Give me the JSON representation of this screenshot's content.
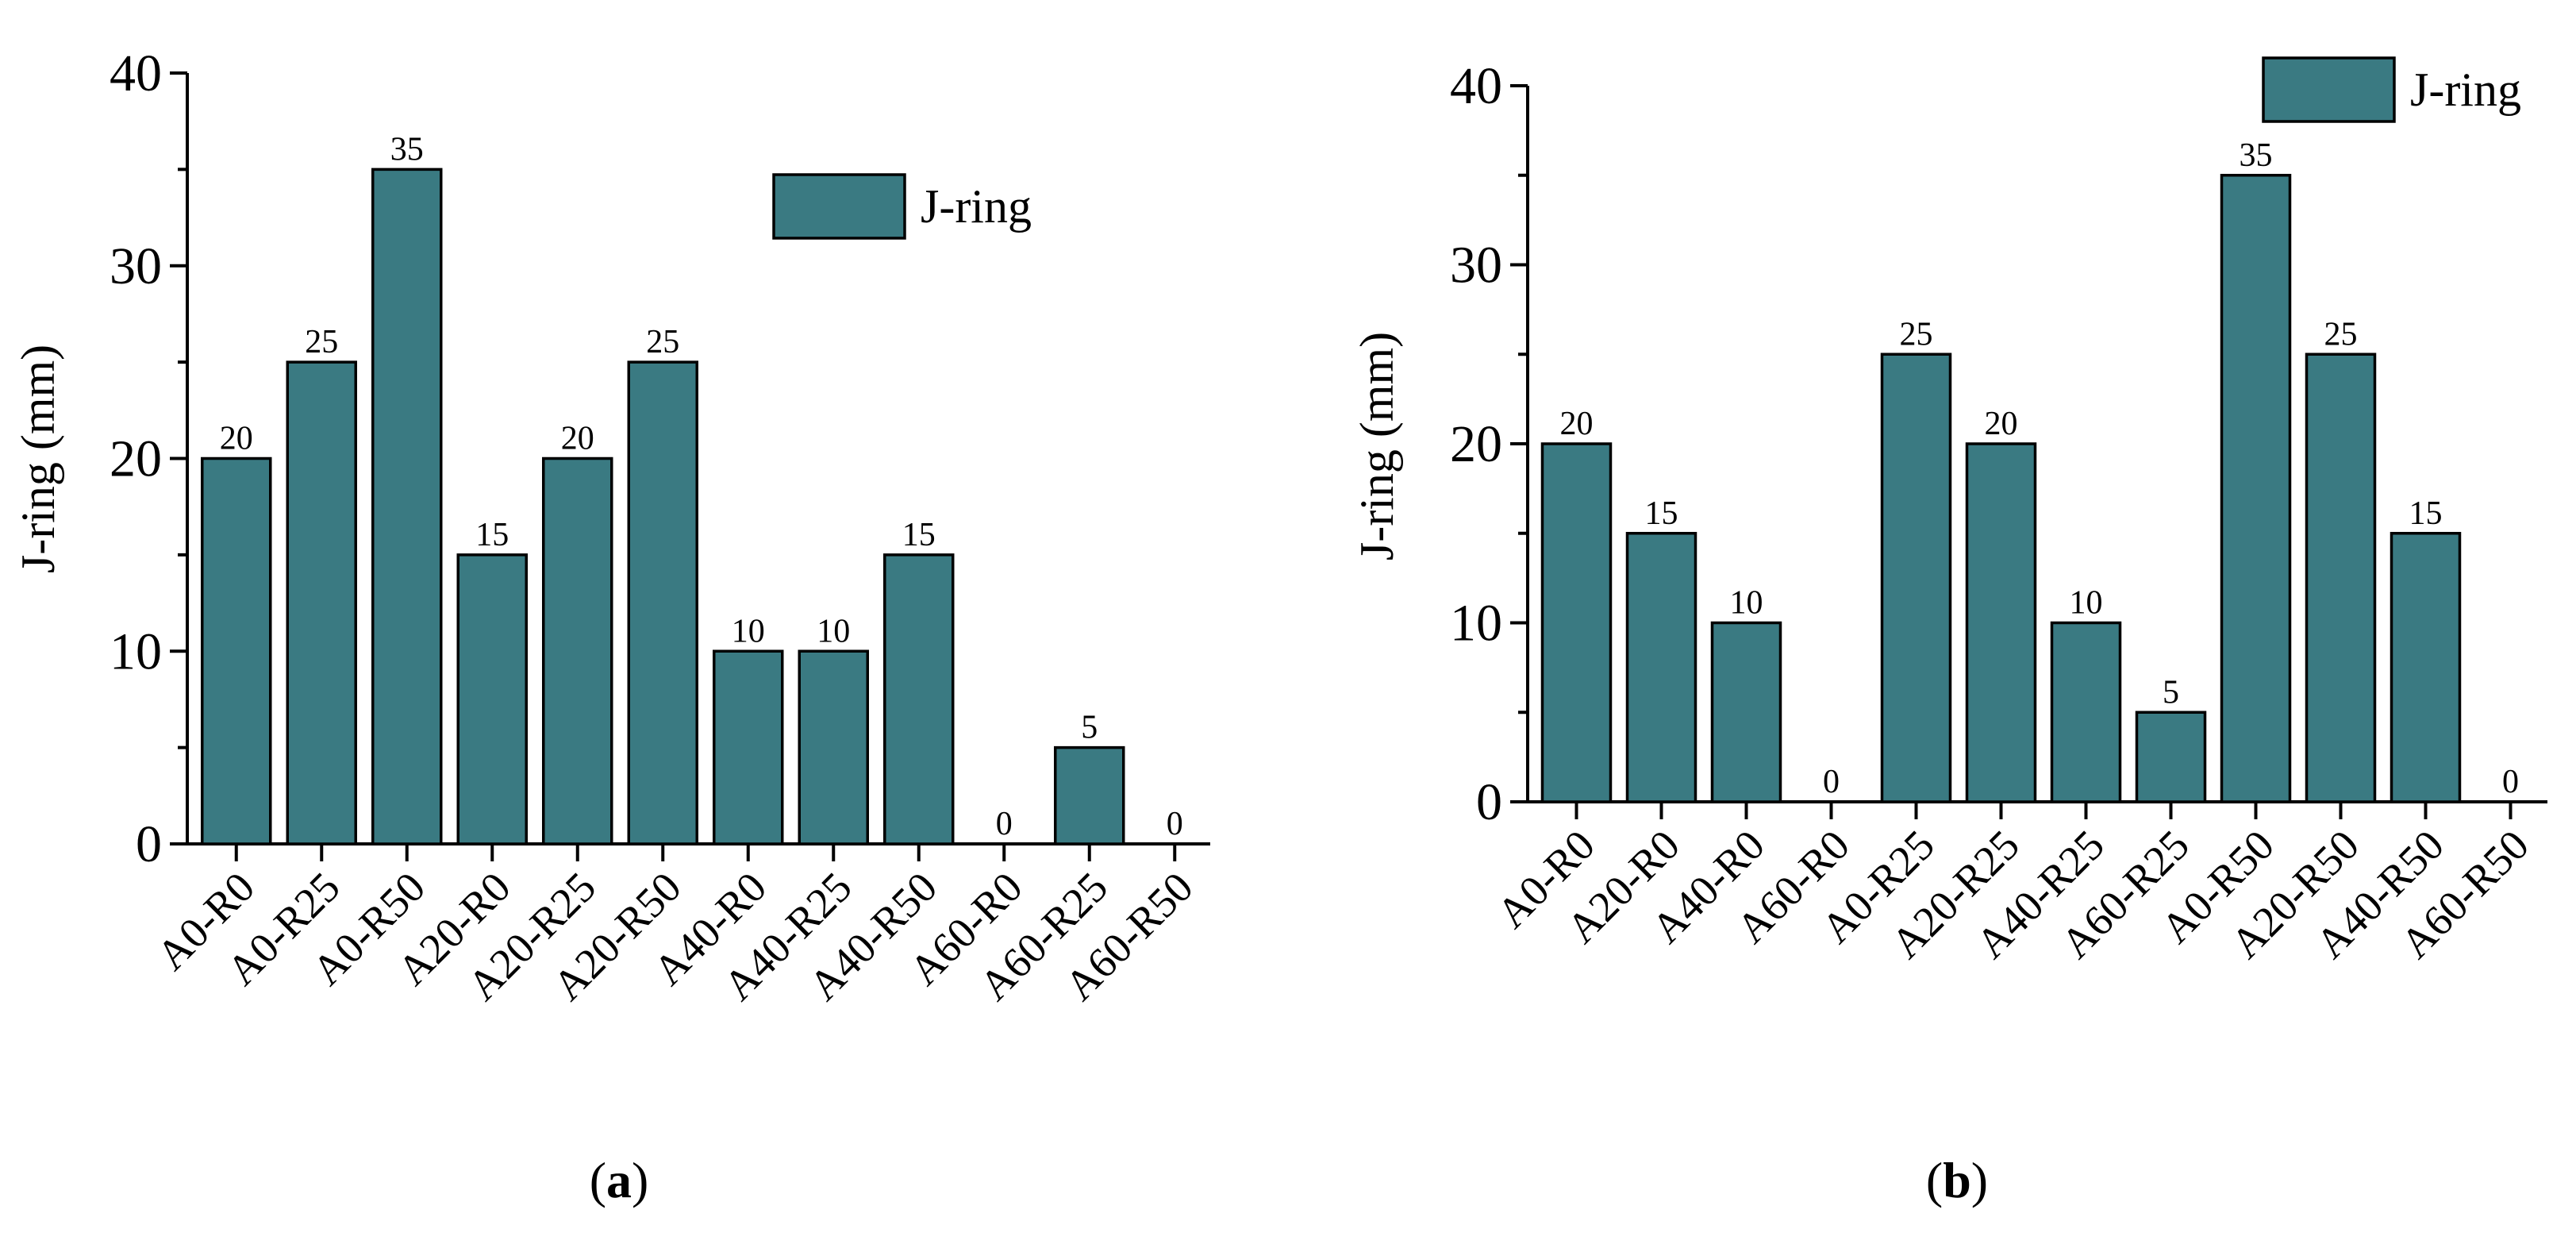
{
  "chart_data": [
    {
      "type": "bar",
      "panel": "a",
      "caption_open": "(",
      "caption_letter": "a",
      "caption_close": ")",
      "ylabel": "J-ring (mm)",
      "ylim": [
        0,
        40
      ],
      "yticks": [
        "0",
        "10",
        "20",
        "30",
        "40"
      ],
      "legend": "J-ring",
      "legend_position": "top-right",
      "categories": [
        "A0-R0",
        "A0-R25",
        "A0-R50",
        "A20-R0",
        "A20-R25",
        "A20-R50",
        "A40-R0",
        "A40-R25",
        "A40-R50",
        "A60-R0",
        "A60-R25",
        "A60-R50"
      ],
      "values": [
        20,
        25,
        35,
        15,
        20,
        25,
        10,
        10,
        15,
        0,
        5,
        0
      ],
      "data_labels": [
        "20",
        "25",
        "35",
        "15",
        "20",
        "25",
        "10",
        "10",
        "15",
        "0",
        "5",
        "0"
      ],
      "bar_color": "#3a7a82"
    },
    {
      "type": "bar",
      "panel": "b",
      "caption_open": "(",
      "caption_letter": "b",
      "caption_close": ")",
      "ylabel": "J-ring (mm)",
      "ylim": [
        0,
        40
      ],
      "yticks": [
        "0",
        "10",
        "20",
        "30",
        "40"
      ],
      "legend": "J-ring",
      "legend_position": "top-right",
      "categories": [
        "A0-R0",
        "A20-R0",
        "A40-R0",
        "A60-R0",
        "A0-R25",
        "A20-R25",
        "A40-R25",
        "A60-R25",
        "A0-R50",
        "A20-R50",
        "A40-R50",
        "A60-R50"
      ],
      "values": [
        20,
        15,
        10,
        0,
        25,
        20,
        10,
        5,
        35,
        25,
        15,
        0
      ],
      "data_labels": [
        "20",
        "15",
        "10",
        "0",
        "25",
        "20",
        "10",
        "5",
        "35",
        "25",
        "15",
        "0"
      ],
      "bar_color": "#3a7a82"
    }
  ]
}
